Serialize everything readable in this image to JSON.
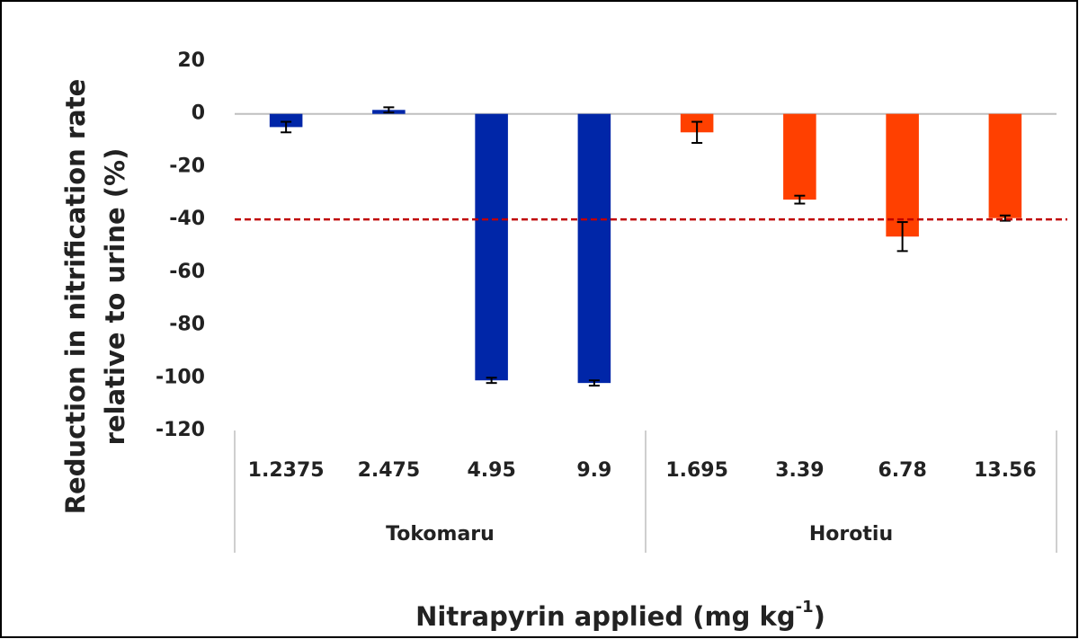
{
  "chart_data": {
    "type": "bar",
    "ylabel": [
      "Reduction in nitrification rate",
      "relative to urine (%)"
    ],
    "xlabel": {
      "text": "Nitrapyrin applied (mg kg",
      "superscript": "-1",
      "suffix": ")"
    },
    "groups": [
      {
        "name": "Tokomaru",
        "color": "#0026a8",
        "categories": [
          "1.2375",
          "2.475",
          "4.95",
          "9.9"
        ],
        "values": [
          -5,
          1.5,
          -101,
          -102
        ],
        "errors": [
          2,
          1,
          1,
          1
        ]
      },
      {
        "name": "Horotiu",
        "color": "#ff4000",
        "categories": [
          "1.695",
          "3.39",
          "6.78",
          "13.56"
        ],
        "values": [
          -7,
          -32.5,
          -46.5,
          -39.5
        ],
        "errors": [
          4,
          1.5,
          5.5,
          1
        ]
      }
    ],
    "reference_line": {
      "value": -40,
      "color": "#c00000"
    },
    "ylim": [
      -120,
      20
    ],
    "yticks": [
      20,
      0,
      -20,
      -40,
      -60,
      -80,
      -100,
      -120
    ]
  }
}
